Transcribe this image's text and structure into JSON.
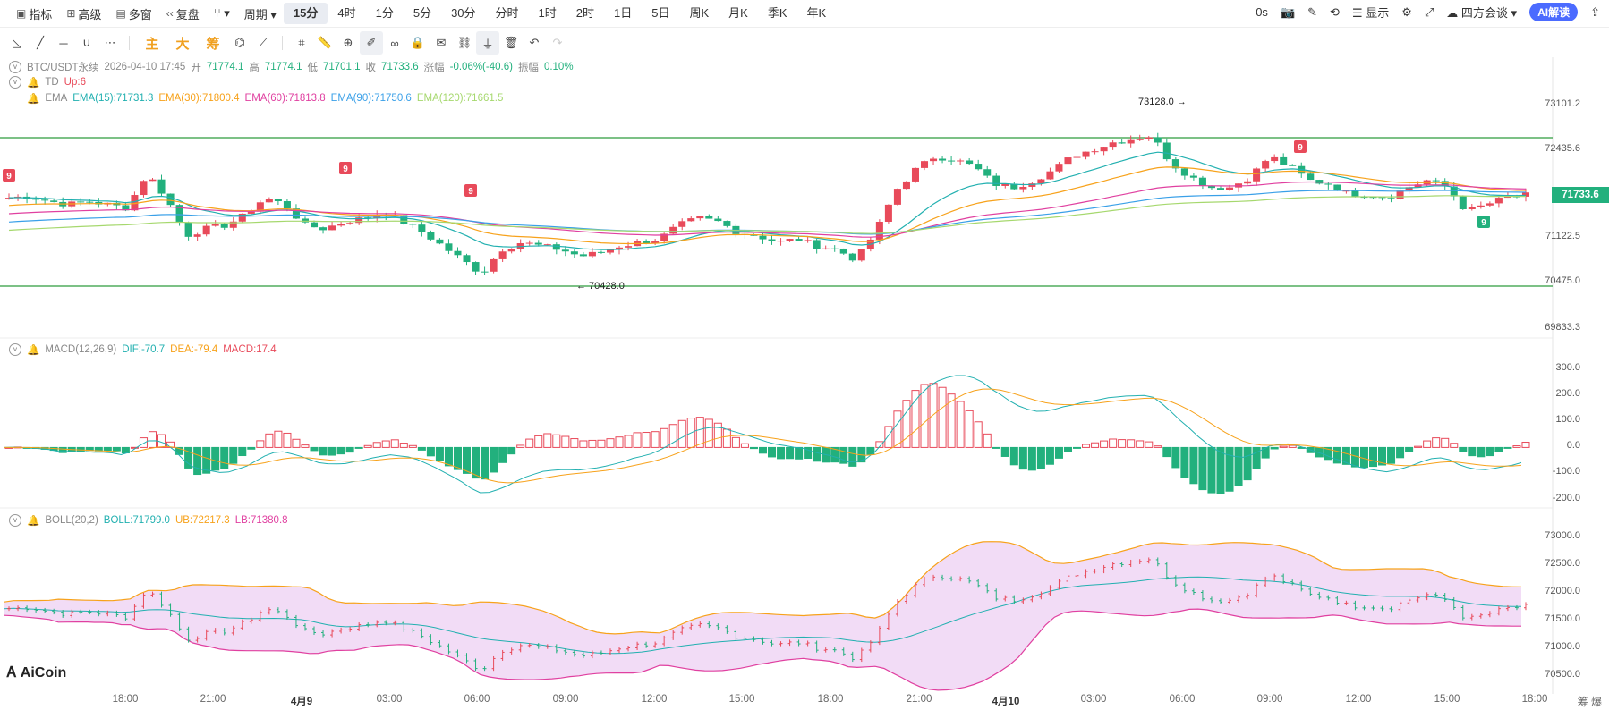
{
  "toolbar": {
    "left_items": [
      {
        "label": "指标",
        "icon": "indicator-icon"
      },
      {
        "label": "高级",
        "icon": "advanced-icon"
      },
      {
        "label": "多窗",
        "icon": "multiwindow-icon"
      },
      {
        "label": "复盘",
        "icon": "replay-icon"
      }
    ],
    "period_label": "周期",
    "timeframes": [
      "15分",
      "4时",
      "1分",
      "5分",
      "30分",
      "分时",
      "1时",
      "2时",
      "1日",
      "5日",
      "周K",
      "月K",
      "季K",
      "年K"
    ],
    "active_timeframe": "15分",
    "right": {
      "countdown": "0s",
      "display_label": "显示",
      "theme_label": "四方会谈",
      "ai_label": "AI解读"
    }
  },
  "drawbar": {
    "markers": [
      "主",
      "大",
      "筹"
    ]
  },
  "legend": {
    "ohlc": {
      "symbol": "BTC/USDT永续",
      "datetime": "2026-04-10 17:45",
      "open_label": "开",
      "open": "71774.1",
      "high_label": "高",
      "high": "71774.1",
      "low_label": "低",
      "low": "71701.1",
      "close_label": "收",
      "close": "71733.6",
      "change_label": "涨幅",
      "change": "-0.06%(-40.6)",
      "amp_label": "振幅",
      "amp": "0.10%"
    },
    "td": {
      "name": "TD",
      "value": "Up:6"
    },
    "ema": {
      "name": "EMA",
      "items": [
        {
          "text": "EMA(15):71731.3",
          "color": "#22b0b0"
        },
        {
          "text": "EMA(30):71800.4",
          "color": "#f7a21b"
        },
        {
          "text": "EMA(60):71813.8",
          "color": "#e040a0"
        },
        {
          "text": "EMA(90):71750.6",
          "color": "#3aa0e8"
        },
        {
          "text": "EMA(120):71661.5",
          "color": "#a6d86e"
        }
      ]
    },
    "macd": {
      "name": "MACD(12,26,9)",
      "dif": "DIF:-70.7",
      "dea": "DEA:-79.4",
      "macd": "MACD:17.4"
    },
    "boll": {
      "name": "BOLL(20,2)",
      "mid": "BOLL:71799.0",
      "ub": "UB:72217.3",
      "lb": "LB:71380.8"
    }
  },
  "price_axis": [
    "73101.2",
    "72435.6",
    "71122.5",
    "70475.0",
    "69833.3"
  ],
  "current_price": "71733.6",
  "macd_axis": [
    "300.0",
    "200.0",
    "100.0",
    "0.0",
    "-100.0",
    "-200.0"
  ],
  "boll_axis": [
    "73000.0",
    "72500.0",
    "72000.0",
    "71500.0",
    "71000.0",
    "70500.0"
  ],
  "annotations": {
    "high": "73128.0",
    "low": "70428.0",
    "td_marks": [
      "9",
      "9",
      "9",
      "9",
      "9"
    ]
  },
  "time_axis": [
    {
      "label": "18:00",
      "bold": false
    },
    {
      "label": "21:00",
      "bold": false
    },
    {
      "label": "4月9",
      "bold": true
    },
    {
      "label": "03:00",
      "bold": false
    },
    {
      "label": "06:00",
      "bold": false
    },
    {
      "label": "09:00",
      "bold": false
    },
    {
      "label": "12:00",
      "bold": false
    },
    {
      "label": "15:00",
      "bold": false
    },
    {
      "label": "18:00",
      "bold": false
    },
    {
      "label": "21:00",
      "bold": false
    },
    {
      "label": "4月10",
      "bold": true
    },
    {
      "label": "03:00",
      "bold": false
    },
    {
      "label": "06:00",
      "bold": false
    },
    {
      "label": "09:00",
      "bold": false
    },
    {
      "label": "12:00",
      "bold": false
    },
    {
      "label": "15:00",
      "bold": false
    },
    {
      "label": "18:00",
      "bold": false
    }
  ],
  "logo_text": "AiCoin",
  "corner_text": "筹 爆",
  "colors": {
    "up": "#e84a5a",
    "down": "#22b07d",
    "boll_fill": "#f2dcf6"
  },
  "chart_data": {
    "type": "candlestick",
    "price_range": [
      69833.3,
      73101.2
    ],
    "key_points": [
      {
        "label": "max",
        "value": 73128.0
      },
      {
        "label": "min",
        "value": 70428.0
      },
      {
        "label": "last",
        "value": 71733.6
      }
    ],
    "close_path": [
      71700,
      71720,
      71650,
      71600,
      71650,
      71600,
      71550,
      72050,
      71700,
      71150,
      71250,
      71300,
      71450,
      71700,
      71600,
      71300,
      71250,
      71350,
      71400,
      71500,
      71350,
      71200,
      71000,
      70800,
      70600,
      70950,
      71050,
      71000,
      70950,
      70850,
      70900,
      71000,
      71050,
      71100,
      71300,
      71400,
      71350,
      71200,
      71150,
      71050,
      71100,
      71000,
      70950,
      70800,
      71200,
      71800,
      72100,
      72300,
      72250,
      72150,
      71900,
      71850,
      71950,
      72100,
      72300,
      72400,
      72500,
      72550,
      72600,
      72200,
      72000,
      71850,
      71850,
      72000,
      72300,
      72150,
      71950,
      71900,
      71750,
      71750,
      71700,
      71850,
      71950,
      71850,
      71500,
      71600,
      71700,
      71733.6
    ],
    "ema_series": [
      {
        "name": "EMA(15)",
        "last": 71731.3
      },
      {
        "name": "EMA(30)",
        "last": 71800.4
      },
      {
        "name": "EMA(60)",
        "last": 71813.8
      },
      {
        "name": "EMA(90)",
        "last": 71750.6
      },
      {
        "name": "EMA(120)",
        "last": 71661.5
      }
    ],
    "macd": {
      "range": [
        -250,
        350
      ],
      "dif_last": -70.7,
      "dea_last": -79.4,
      "hist_last": 17.4
    },
    "boll": {
      "range": [
        70350,
        73150
      ],
      "mid_last": 71799.0,
      "ub_last": 72217.3,
      "lb_last": 71380.8
    }
  }
}
